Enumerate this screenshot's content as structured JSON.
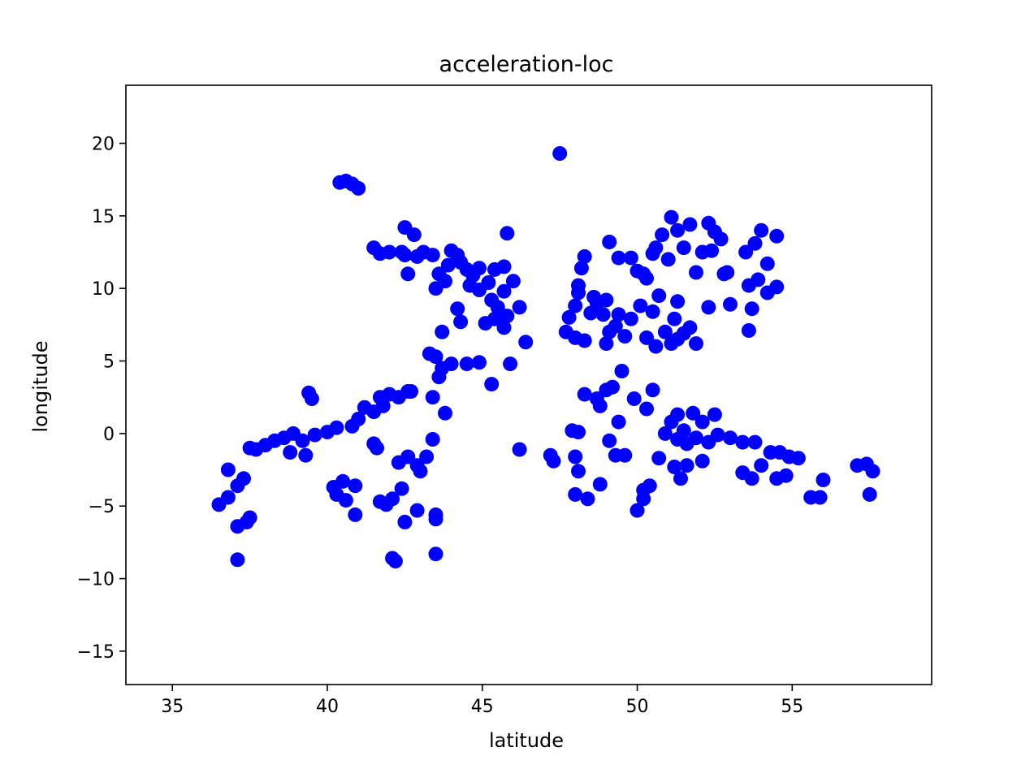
{
  "chart_data": {
    "type": "scatter",
    "title": "acceleration-loc",
    "xlabel": "latitude",
    "ylabel": "longitude",
    "xlim": [
      33.5,
      59.5
    ],
    "ylim": [
      -17.3,
      24.0
    ],
    "grid": false,
    "legend": "none",
    "marker_color": "#0000ff",
    "xticks": [
      35,
      40,
      45,
      50,
      55
    ],
    "xtick_labels": [
      "35",
      "40",
      "45",
      "50",
      "55"
    ],
    "yticks": [
      -15,
      -10,
      -5,
      0,
      5,
      10,
      15,
      20
    ],
    "ytick_labels": [
      "−15",
      "−10",
      "−5",
      "0",
      "5",
      "10",
      "15",
      "20"
    ],
    "points": [
      [
        47.5,
        19.3
      ],
      [
        40.4,
        17.3
      ],
      [
        40.6,
        17.4
      ],
      [
        40.8,
        17.2
      ],
      [
        41.0,
        16.9
      ],
      [
        41.5,
        12.8
      ],
      [
        41.7,
        12.4
      ],
      [
        42.0,
        12.5
      ],
      [
        42.4,
        12.5
      ],
      [
        42.5,
        14.2
      ],
      [
        42.8,
        13.7
      ],
      [
        42.6,
        11.0
      ],
      [
        42.9,
        12.2
      ],
      [
        43.1,
        12.5
      ],
      [
        43.4,
        12.3
      ],
      [
        43.6,
        11.0
      ],
      [
        43.8,
        10.5
      ],
      [
        43.9,
        11.6
      ],
      [
        44.0,
        12.6
      ],
      [
        44.2,
        12.3
      ],
      [
        44.3,
        11.8
      ],
      [
        44.5,
        11.3
      ],
      [
        44.7,
        10.9
      ],
      [
        44.6,
        10.2
      ],
      [
        44.9,
        9.9
      ],
      [
        45.2,
        10.4
      ],
      [
        45.4,
        11.3
      ],
      [
        45.7,
        11.5
      ],
      [
        45.3,
        9.2
      ],
      [
        45.5,
        8.7
      ],
      [
        45.7,
        9.8
      ],
      [
        46.0,
        10.5
      ],
      [
        45.8,
        8.1
      ],
      [
        46.2,
        8.7
      ],
      [
        45.1,
        7.6
      ],
      [
        45.4,
        7.9
      ],
      [
        45.7,
        7.3
      ],
      [
        44.9,
        11.4
      ],
      [
        45.8,
        13.8
      ],
      [
        44.2,
        8.6
      ],
      [
        44.3,
        7.7
      ],
      [
        43.7,
        7.0
      ],
      [
        43.5,
        10.0
      ],
      [
        42.5,
        12.3
      ],
      [
        43.3,
        5.5
      ],
      [
        43.5,
        5.3
      ],
      [
        43.7,
        4.5
      ],
      [
        44.0,
        4.8
      ],
      [
        43.6,
        3.9
      ],
      [
        44.5,
        4.8
      ],
      [
        44.9,
        4.9
      ],
      [
        45.3,
        3.4
      ],
      [
        45.9,
        4.8
      ],
      [
        46.4,
        6.3
      ],
      [
        43.4,
        2.5
      ],
      [
        43.8,
        1.4
      ],
      [
        39.4,
        2.8
      ],
      [
        39.5,
        2.4
      ],
      [
        41.5,
        1.5
      ],
      [
        41.7,
        2.5
      ],
      [
        41.8,
        1.9
      ],
      [
        42.0,
        2.7
      ],
      [
        42.3,
        2.5
      ],
      [
        42.7,
        2.9
      ],
      [
        42.6,
        2.9
      ],
      [
        41.2,
        1.8
      ],
      [
        41.0,
        1.0
      ],
      [
        40.8,
        0.5
      ],
      [
        40.3,
        0.4
      ],
      [
        40.0,
        0.1
      ],
      [
        39.6,
        -0.1
      ],
      [
        39.2,
        -0.5
      ],
      [
        38.9,
        0.0
      ],
      [
        38.6,
        -0.3
      ],
      [
        38.3,
        -0.5
      ],
      [
        38.0,
        -0.8
      ],
      [
        37.7,
        -1.1
      ],
      [
        37.5,
        -1.0
      ],
      [
        38.8,
        -1.3
      ],
      [
        39.3,
        -1.5
      ],
      [
        41.6,
        -1.0
      ],
      [
        41.5,
        -0.7
      ],
      [
        42.6,
        -1.6
      ],
      [
        42.9,
        -2.2
      ],
      [
        43.4,
        -0.4
      ],
      [
        43.2,
        -1.6
      ],
      [
        43.0,
        -2.6
      ],
      [
        42.4,
        -3.8
      ],
      [
        42.3,
        -2.0
      ],
      [
        41.7,
        -4.7
      ],
      [
        41.9,
        -4.9
      ],
      [
        42.1,
        -4.5
      ],
      [
        40.2,
        -3.7
      ],
      [
        40.3,
        -4.2
      ],
      [
        40.5,
        -3.3
      ],
      [
        40.9,
        -3.6
      ],
      [
        40.6,
        -4.6
      ],
      [
        40.9,
        -5.6
      ],
      [
        42.5,
        -6.1
      ],
      [
        42.9,
        -5.3
      ],
      [
        43.5,
        -5.6
      ],
      [
        43.5,
        -5.9
      ],
      [
        42.1,
        -8.6
      ],
      [
        42.2,
        -8.8
      ],
      [
        43.5,
        -8.3
      ],
      [
        36.8,
        -2.5
      ],
      [
        37.1,
        -3.6
      ],
      [
        37.3,
        -3.1
      ],
      [
        36.5,
        -4.9
      ],
      [
        36.8,
        -4.4
      ],
      [
        37.1,
        -6.4
      ],
      [
        37.4,
        -6.1
      ],
      [
        37.5,
        -5.8
      ],
      [
        37.1,
        -8.7
      ],
      [
        47.8,
        8.0
      ],
      [
        48.0,
        8.8
      ],
      [
        48.1,
        9.7
      ],
      [
        48.1,
        10.2
      ],
      [
        48.2,
        11.4
      ],
      [
        48.3,
        12.2
      ],
      [
        48.5,
        8.3
      ],
      [
        48.7,
        9.0
      ],
      [
        48.9,
        8.2
      ],
      [
        49.0,
        9.2
      ],
      [
        49.1,
        7.0
      ],
      [
        49.3,
        7.4
      ],
      [
        49.4,
        8.2
      ],
      [
        49.6,
        6.7
      ],
      [
        49.1,
        13.2
      ],
      [
        49.4,
        12.1
      ],
      [
        49.8,
        12.1
      ],
      [
        50.0,
        11.2
      ],
      [
        50.2,
        11.0
      ],
      [
        50.3,
        10.7
      ],
      [
        50.5,
        12.4
      ],
      [
        50.6,
        12.8
      ],
      [
        50.8,
        13.7
      ],
      [
        51.0,
        12.0
      ],
      [
        51.1,
        14.9
      ],
      [
        51.3,
        14.0
      ],
      [
        51.5,
        12.8
      ],
      [
        51.7,
        14.4
      ],
      [
        51.9,
        11.1
      ],
      [
        52.1,
        12.5
      ],
      [
        52.3,
        14.5
      ],
      [
        52.5,
        13.9
      ],
      [
        52.4,
        12.6
      ],
      [
        52.7,
        13.4
      ],
      [
        52.9,
        11.1
      ],
      [
        53.0,
        8.9
      ],
      [
        52.3,
        8.7
      ],
      [
        51.3,
        9.1
      ],
      [
        50.7,
        9.5
      ],
      [
        50.9,
        7.0
      ],
      [
        51.1,
        6.2
      ],
      [
        51.3,
        6.5
      ],
      [
        51.5,
        6.9
      ],
      [
        51.7,
        7.3
      ],
      [
        51.9,
        6.2
      ],
      [
        51.2,
        7.9
      ],
      [
        50.5,
        8.4
      ],
      [
        50.1,
        8.8
      ],
      [
        49.8,
        7.9
      ],
      [
        48.6,
        9.4
      ],
      [
        47.7,
        7.0
      ],
      [
        48.0,
        6.6
      ],
      [
        48.3,
        6.4
      ],
      [
        49.0,
        6.2
      ],
      [
        50.3,
        6.6
      ],
      [
        50.6,
        6.0
      ],
      [
        53.5,
        12.5
      ],
      [
        53.8,
        13.1
      ],
      [
        54.0,
        14.0
      ],
      [
        53.6,
        10.2
      ],
      [
        53.9,
        10.6
      ],
      [
        54.2,
        11.7
      ],
      [
        54.5,
        13.6
      ],
      [
        54.2,
        9.7
      ],
      [
        54.5,
        10.1
      ],
      [
        53.7,
        8.6
      ],
      [
        53.6,
        7.1
      ],
      [
        52.8,
        11.0
      ],
      [
        48.3,
        2.7
      ],
      [
        48.7,
        2.4
      ],
      [
        49.0,
        3.0
      ],
      [
        49.2,
        3.2
      ],
      [
        49.5,
        4.3
      ],
      [
        48.8,
        1.9
      ],
      [
        49.4,
        0.8
      ],
      [
        49.1,
        -0.5
      ],
      [
        49.6,
        -1.5
      ],
      [
        49.9,
        2.4
      ],
      [
        50.3,
        1.7
      ],
      [
        50.5,
        3.0
      ],
      [
        50.9,
        0.0
      ],
      [
        51.1,
        0.8
      ],
      [
        51.3,
        1.3
      ],
      [
        51.5,
        0.2
      ],
      [
        51.8,
        1.4
      ],
      [
        52.1,
        0.8
      ],
      [
        52.5,
        1.3
      ],
      [
        51.3,
        -0.4
      ],
      [
        51.6,
        -0.7
      ],
      [
        51.9,
        -0.3
      ],
      [
        52.3,
        -0.6
      ],
      [
        52.6,
        -0.1
      ],
      [
        53.0,
        -0.3
      ],
      [
        53.4,
        -0.6
      ],
      [
        53.8,
        -0.6
      ],
      [
        54.3,
        -1.3
      ],
      [
        54.6,
        -1.3
      ],
      [
        54.9,
        -1.6
      ],
      [
        55.2,
        -1.7
      ],
      [
        50.7,
        -1.7
      ],
      [
        51.2,
        -2.3
      ],
      [
        51.6,
        -2.2
      ],
      [
        52.1,
        -1.9
      ],
      [
        51.4,
        -3.1
      ],
      [
        53.4,
        -2.7
      ],
      [
        53.7,
        -3.1
      ],
      [
        54.0,
        -2.2
      ],
      [
        54.5,
        -3.1
      ],
      [
        54.8,
        -2.9
      ],
      [
        55.6,
        -4.4
      ],
      [
        55.9,
        -4.4
      ],
      [
        56.0,
        -3.2
      ],
      [
        57.1,
        -2.2
      ],
      [
        57.4,
        -2.1
      ],
      [
        57.6,
        -2.6
      ],
      [
        57.5,
        -4.2
      ],
      [
        50.4,
        -3.6
      ],
      [
        50.2,
        -3.9
      ],
      [
        50.2,
        -4.5
      ],
      [
        50.0,
        -5.3
      ],
      [
        48.0,
        -1.6
      ],
      [
        48.1,
        -2.6
      ],
      [
        47.2,
        -1.5
      ],
      [
        47.3,
        -1.9
      ],
      [
        46.2,
        -1.1
      ],
      [
        48.0,
        -4.2
      ],
      [
        48.4,
        -4.5
      ],
      [
        48.8,
        -3.5
      ],
      [
        49.3,
        -1.5
      ],
      [
        47.9,
        0.2
      ],
      [
        48.1,
        0.1
      ]
    ]
  }
}
